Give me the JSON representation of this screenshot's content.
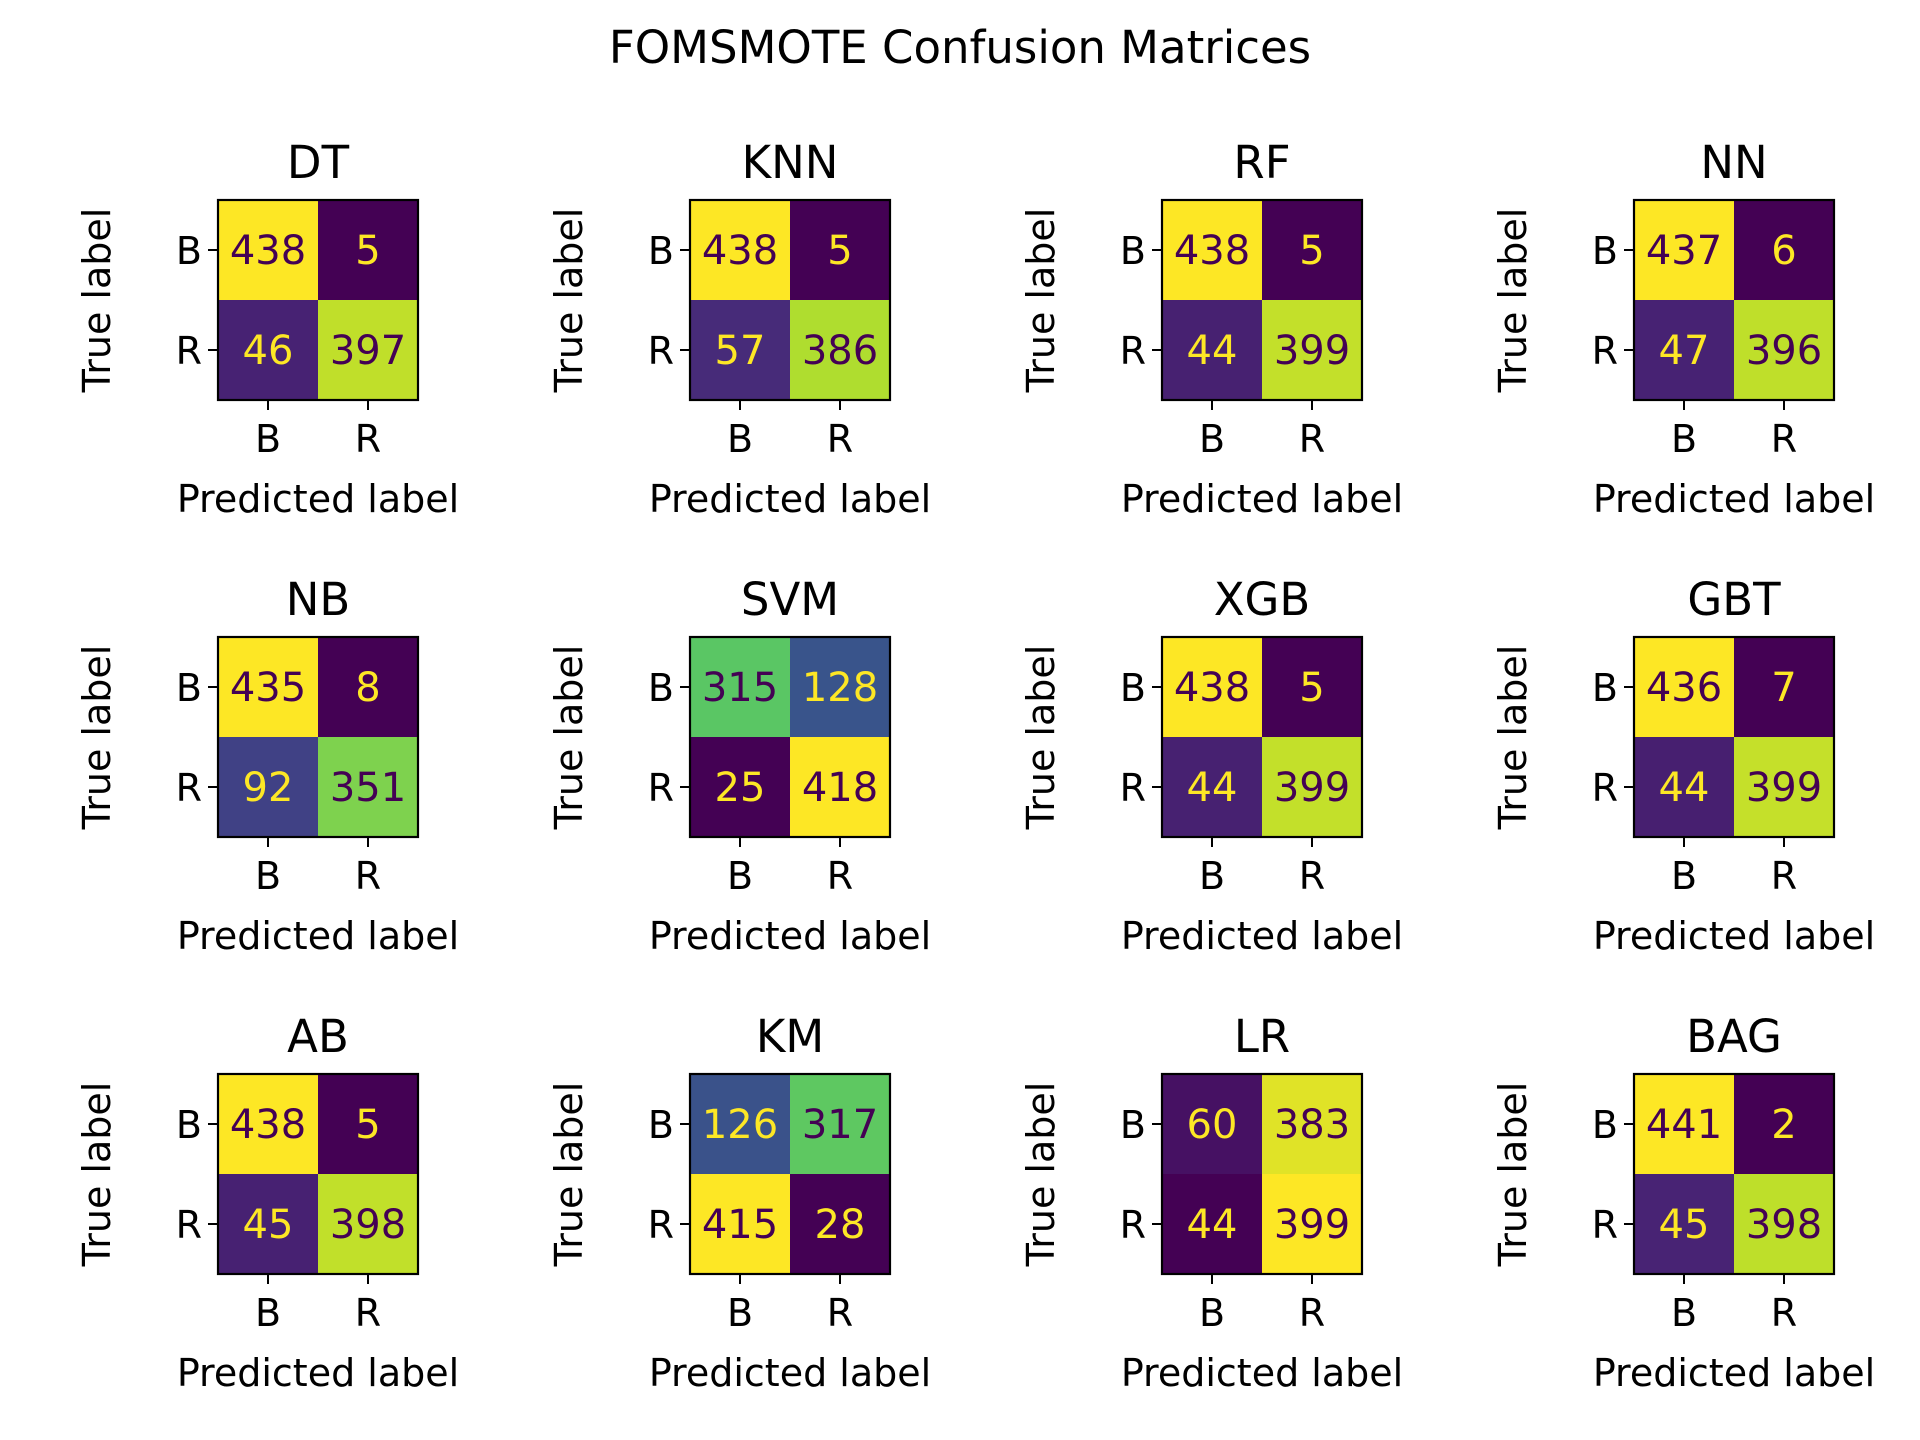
{
  "figure": {
    "title": "FOMSMOTE Confusion Matrices"
  },
  "colormap": {
    "name": "viridis",
    "stops": [
      "#440154",
      "#482878",
      "#3e4989",
      "#31688e",
      "#26828e",
      "#1f9e89",
      "#35b779",
      "#6ece58",
      "#b5de2b",
      "#fde725"
    ]
  },
  "chart_data": [
    {
      "type": "heatmap",
      "title": "DT",
      "xlabel": "Predicted label",
      "ylabel": "True label",
      "x_ticks": [
        "B",
        "R"
      ],
      "y_ticks": [
        "B",
        "R"
      ],
      "values": [
        [
          438,
          5
        ],
        [
          46,
          397
        ]
      ]
    },
    {
      "type": "heatmap",
      "title": "KNN",
      "xlabel": "Predicted label",
      "ylabel": "True label",
      "x_ticks": [
        "B",
        "R"
      ],
      "y_ticks": [
        "B",
        "R"
      ],
      "values": [
        [
          438,
          5
        ],
        [
          57,
          386
        ]
      ]
    },
    {
      "type": "heatmap",
      "title": "RF",
      "xlabel": "Predicted label",
      "ylabel": "True label",
      "x_ticks": [
        "B",
        "R"
      ],
      "y_ticks": [
        "B",
        "R"
      ],
      "values": [
        [
          438,
          5
        ],
        [
          44,
          399
        ]
      ]
    },
    {
      "type": "heatmap",
      "title": "NN",
      "xlabel": "Predicted label",
      "ylabel": "True label",
      "x_ticks": [
        "B",
        "R"
      ],
      "y_ticks": [
        "B",
        "R"
      ],
      "values": [
        [
          437,
          6
        ],
        [
          47,
          396
        ]
      ]
    },
    {
      "type": "heatmap",
      "title": "NB",
      "xlabel": "Predicted label",
      "ylabel": "True label",
      "x_ticks": [
        "B",
        "R"
      ],
      "y_ticks": [
        "B",
        "R"
      ],
      "values": [
        [
          435,
          8
        ],
        [
          92,
          351
        ]
      ]
    },
    {
      "type": "heatmap",
      "title": "SVM",
      "xlabel": "Predicted label",
      "ylabel": "True label",
      "x_ticks": [
        "B",
        "R"
      ],
      "y_ticks": [
        "B",
        "R"
      ],
      "values": [
        [
          315,
          128
        ],
        [
          25,
          418
        ]
      ]
    },
    {
      "type": "heatmap",
      "title": "XGB",
      "xlabel": "Predicted label",
      "ylabel": "True label",
      "x_ticks": [
        "B",
        "R"
      ],
      "y_ticks": [
        "B",
        "R"
      ],
      "values": [
        [
          438,
          5
        ],
        [
          44,
          399
        ]
      ]
    },
    {
      "type": "heatmap",
      "title": "GBT",
      "xlabel": "Predicted label",
      "ylabel": "True label",
      "x_ticks": [
        "B",
        "R"
      ],
      "y_ticks": [
        "B",
        "R"
      ],
      "values": [
        [
          436,
          7
        ],
        [
          44,
          399
        ]
      ]
    },
    {
      "type": "heatmap",
      "title": "AB",
      "xlabel": "Predicted label",
      "ylabel": "True label",
      "x_ticks": [
        "B",
        "R"
      ],
      "y_ticks": [
        "B",
        "R"
      ],
      "values": [
        [
          438,
          5
        ],
        [
          45,
          398
        ]
      ]
    },
    {
      "type": "heatmap",
      "title": "KM",
      "xlabel": "Predicted label",
      "ylabel": "True label",
      "x_ticks": [
        "B",
        "R"
      ],
      "y_ticks": [
        "B",
        "R"
      ],
      "values": [
        [
          126,
          317
        ],
        [
          415,
          28
        ]
      ]
    },
    {
      "type": "heatmap",
      "title": "LR",
      "xlabel": "Predicted label",
      "ylabel": "True label",
      "x_ticks": [
        "B",
        "R"
      ],
      "y_ticks": [
        "B",
        "R"
      ],
      "values": [
        [
          60,
          383
        ],
        [
          44,
          399
        ]
      ]
    },
    {
      "type": "heatmap",
      "title": "BAG",
      "xlabel": "Predicted label",
      "ylabel": "True label",
      "x_ticks": [
        "B",
        "R"
      ],
      "y_ticks": [
        "B",
        "R"
      ],
      "values": [
        [
          441,
          2
        ],
        [
          45,
          398
        ]
      ]
    }
  ]
}
